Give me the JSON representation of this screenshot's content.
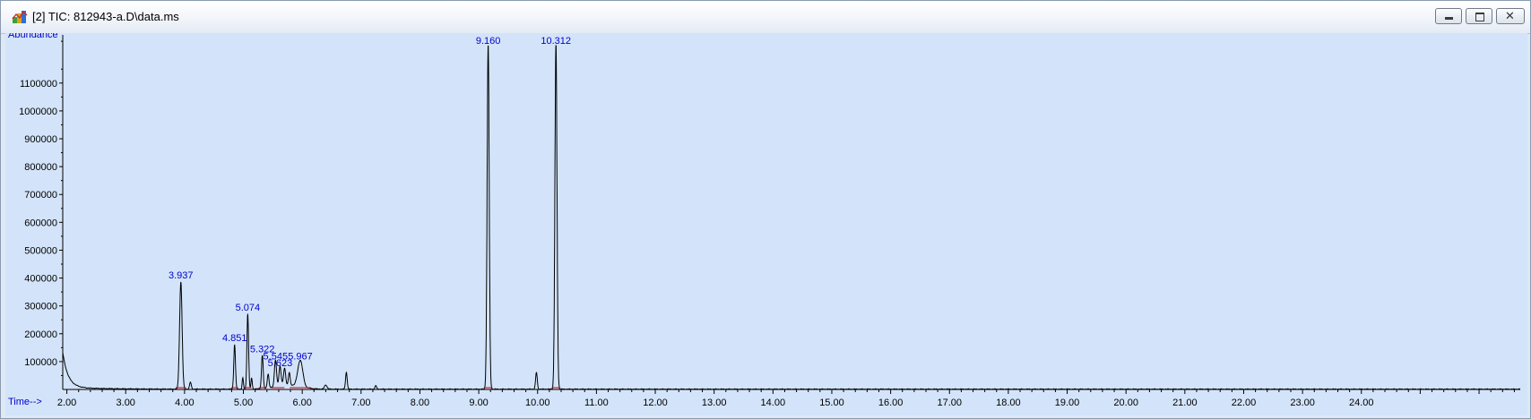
{
  "window": {
    "title": "[2] TIC: 812943-a.D\\data.ms",
    "icon": "chromatogram-app-icon",
    "controls": [
      "minimize-icon",
      "maximize-icon",
      "close-icon"
    ]
  },
  "colors": {
    "plot_background": "#d3e4fa",
    "trace": "#000000",
    "label": "#0000cc",
    "baseline_marker": "#cc0000"
  },
  "chart_data": {
    "type": "line",
    "title": "",
    "ylabel": "Abundance",
    "xlabel": "Time-->",
    "xlim": [
      1.93,
      26.7
    ],
    "ylim": [
      0,
      1260000
    ],
    "x_ticks": [
      {
        "value": 2,
        "label": "2.00"
      },
      {
        "value": 3,
        "label": "3.00"
      },
      {
        "value": 4,
        "label": "4.00"
      },
      {
        "value": 5,
        "label": "5.00"
      },
      {
        "value": 6,
        "label": "6.00"
      },
      {
        "value": 7,
        "label": "7.00"
      },
      {
        "value": 8,
        "label": "8.00"
      },
      {
        "value": 9,
        "label": "9.00"
      },
      {
        "value": 10,
        "label": "10.00"
      },
      {
        "value": 11,
        "label": "11.00"
      },
      {
        "value": 12,
        "label": "12.00"
      },
      {
        "value": 13,
        "label": "13.00"
      },
      {
        "value": 14,
        "label": "14.00"
      },
      {
        "value": 15,
        "label": "15.00"
      },
      {
        "value": 16,
        "label": "16.00"
      },
      {
        "value": 17,
        "label": "17.00"
      },
      {
        "value": 18,
        "label": "18.00"
      },
      {
        "value": 19,
        "label": "19.00"
      },
      {
        "value": 20,
        "label": "20.00"
      },
      {
        "value": 21,
        "label": "21.00"
      },
      {
        "value": 22,
        "label": "22.00"
      },
      {
        "value": 23,
        "label": "23.00"
      },
      {
        "value": 24,
        "label": "24.00"
      }
    ],
    "y_ticks": [
      {
        "value": 100000,
        "label": "100000"
      },
      {
        "value": 200000,
        "label": "200000"
      },
      {
        "value": 300000,
        "label": "300000"
      },
      {
        "value": 400000,
        "label": "400000"
      },
      {
        "value": 500000,
        "label": "500000"
      },
      {
        "value": 600000,
        "label": "600000"
      },
      {
        "value": 700000,
        "label": "700000"
      },
      {
        "value": 800000,
        "label": "800000"
      },
      {
        "value": 900000,
        "label": "900000"
      },
      {
        "value": 1000000,
        "label": "1000000"
      },
      {
        "value": 1100000,
        "label": "1100000"
      }
    ],
    "peaks": [
      {
        "rt": 3.937,
        "label": "3.937",
        "height": 385000,
        "width": 0.03
      },
      {
        "rt": 4.851,
        "label": "4.851",
        "height": 160000,
        "width": 0.02
      },
      {
        "rt": 5.074,
        "label": "5.074",
        "height": 270000,
        "width": 0.02
      },
      {
        "rt": 5.322,
        "label": "5.322",
        "height": 120000,
        "width": 0.02
      },
      {
        "rt": 5.545,
        "label": "5.545",
        "height": 95000,
        "width": 0.025
      },
      {
        "rt": 5.623,
        "label": "5.623",
        "height": 70000,
        "width": 0.025
      },
      {
        "rt": 5.967,
        "label": "5.967",
        "height": 95000,
        "width": 0.06
      },
      {
        "rt": 9.16,
        "label": "9.160",
        "height": 1240000,
        "width": 0.025
      },
      {
        "rt": 10.312,
        "label": "10.312",
        "height": 1240000,
        "width": 0.025
      }
    ],
    "minor_peaks": [
      {
        "rt": 4.1,
        "height": 25000,
        "width": 0.02
      },
      {
        "rt": 4.99,
        "height": 40000,
        "width": 0.015
      },
      {
        "rt": 5.14,
        "height": 40000,
        "width": 0.015
      },
      {
        "rt": 5.42,
        "height": 50000,
        "width": 0.02
      },
      {
        "rt": 5.7,
        "height": 60000,
        "width": 0.025
      },
      {
        "rt": 5.78,
        "height": 45000,
        "width": 0.02
      },
      {
        "rt": 6.4,
        "height": 15000,
        "width": 0.03
      },
      {
        "rt": 6.75,
        "height": 60000,
        "width": 0.02
      },
      {
        "rt": 7.25,
        "height": 12000,
        "width": 0.02
      },
      {
        "rt": 9.98,
        "height": 60000,
        "width": 0.02
      }
    ]
  }
}
